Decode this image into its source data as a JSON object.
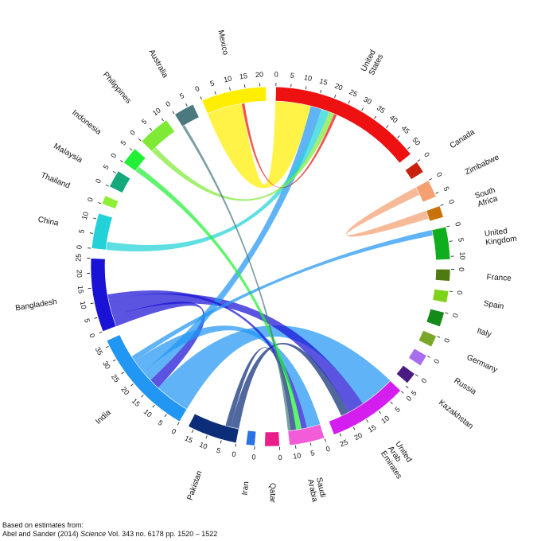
{
  "source": {
    "line1": "Based on estimates from:",
    "authors": "Abel and Sander (2014)",
    "journal": "Science",
    "citation": "Vol. 343 no. 6178 pp. 1520 – 1522"
  },
  "regions": [
    {
      "name": "United States",
      "lines": [
        "United",
        "States"
      ],
      "color": "#ee1111",
      "total": 52,
      "ticks": [
        0,
        5,
        10,
        15,
        20,
        25,
        30,
        35,
        40,
        45,
        50
      ]
    },
    {
      "name": "Canada",
      "lines": [
        "Canada"
      ],
      "color": "#c8220e",
      "total": 4,
      "ticks": [
        0
      ]
    },
    {
      "name": "Zimbabwe",
      "lines": [
        "Zimbabwe"
      ],
      "color": "#f4a070",
      "total": 6,
      "ticks": [
        0,
        5
      ]
    },
    {
      "name": "South Africa",
      "lines": [
        "South",
        "Africa"
      ],
      "color": "#c8720c",
      "total": 4,
      "ticks": [
        0
      ]
    },
    {
      "name": "United Kingdom",
      "lines": [
        "United",
        "Kingdom"
      ],
      "color": "#0fae1e",
      "total": 11,
      "ticks": [
        0,
        5,
        10
      ]
    },
    {
      "name": "France",
      "lines": [
        "France"
      ],
      "color": "#4f7a12",
      "total": 4,
      "ticks": [
        0
      ]
    },
    {
      "name": "Spain",
      "lines": [
        "Spain"
      ],
      "color": "#7ed21a",
      "total": 4,
      "ticks": [
        0
      ]
    },
    {
      "name": "Italy",
      "lines": [
        "Italy"
      ],
      "color": "#148a18",
      "total": 5,
      "ticks": [
        0
      ]
    },
    {
      "name": "Germany",
      "lines": [
        "Germany"
      ],
      "color": "#7aa62a",
      "total": 4,
      "ticks": [
        0
      ]
    },
    {
      "name": "Russia",
      "lines": [
        "Russia"
      ],
      "color": "#a96ef0",
      "total": 4,
      "ticks": [
        0
      ]
    },
    {
      "name": "Kazakhstan",
      "lines": [
        "Kazakhstan"
      ],
      "color": "#4a1c82",
      "total": 4,
      "ticks": [
        0,
        5
      ]
    },
    {
      "name": "United Arab Emirates",
      "lines": [
        "United",
        "Arab",
        "Emirates"
      ],
      "color": "#d41ef0",
      "total": 27,
      "ticks": [
        0,
        5,
        10,
        15,
        20,
        25
      ]
    },
    {
      "name": "Saudi Arabia",
      "lines": [
        "Saudi",
        "Arabia"
      ],
      "color": "#f25cd8",
      "total": 12,
      "ticks": [
        0,
        5,
        10
      ]
    },
    {
      "name": "Qatar",
      "lines": [
        "Qatar"
      ],
      "color": "#ea1e8a",
      "total": 5,
      "ticks": [
        0
      ]
    },
    {
      "name": "Iran",
      "lines": [
        "Iran"
      ],
      "color": "#2a72e6",
      "total": 3,
      "ticks": [
        0
      ]
    },
    {
      "name": "Pakistan",
      "lines": [
        "Pakistan"
      ],
      "color": "#0c2e78",
      "total": 17,
      "ticks": [
        0,
        5,
        10,
        15
      ]
    },
    {
      "name": "India",
      "lines": [
        "India"
      ],
      "color": "#2196f2",
      "total": 37,
      "ticks": [
        0,
        5,
        10,
        15,
        20,
        25,
        30,
        35
      ]
    },
    {
      "name": "Bangladesh",
      "lines": [
        "Bangladesh"
      ],
      "color": "#1a12d4",
      "total": 25,
      "ticks": [
        0,
        5,
        10,
        15,
        20,
        25
      ]
    },
    {
      "name": "China",
      "lines": [
        "China"
      ],
      "color": "#22d2d8",
      "total": 12,
      "ticks": [
        0,
        5,
        10
      ]
    },
    {
      "name": "Thailand",
      "lines": [
        "Thailand"
      ],
      "color": "#8ef036",
      "total": 3,
      "ticks": [
        0
      ]
    },
    {
      "name": "Malaysia",
      "lines": [
        "Malaysia"
      ],
      "color": "#14a87a",
      "total": 6,
      "ticks": [
        0,
        5
      ]
    },
    {
      "name": "Indonesia",
      "lines": [
        "Indonesia"
      ],
      "color": "#22f036",
      "total": 6,
      "ticks": [
        0,
        5
      ]
    },
    {
      "name": "Philippines",
      "lines": [
        "Philippines"
      ],
      "color": "#7eea36",
      "total": 11,
      "ticks": [
        0,
        5,
        10
      ]
    },
    {
      "name": "Australia",
      "lines": [
        "Australia"
      ],
      "color": "#4a7a80",
      "total": 7,
      "ticks": [
        0,
        5
      ]
    },
    {
      "name": "Mexico",
      "lines": [
        "Mexico"
      ],
      "color": "#ffee00",
      "total": 22,
      "ticks": [
        0,
        5,
        10,
        15,
        20
      ]
    }
  ],
  "flows": [
    {
      "from": "India",
      "to": "United Arab Emirates",
      "value": 13
    },
    {
      "from": "Mexico",
      "to": "United States",
      "value": 13
    },
    {
      "from": "Bangladesh",
      "to": "India",
      "value": 4
    },
    {
      "from": "Bangladesh",
      "to": "United Arab Emirates",
      "value": 6
    },
    {
      "from": "India",
      "to": "United States",
      "value": 4
    },
    {
      "from": "India",
      "to": "Saudi Arabia",
      "value": 5
    },
    {
      "from": "Pakistan",
      "to": "United Arab Emirates",
      "value": 3
    },
    {
      "from": "China",
      "to": "United States",
      "value": 3
    },
    {
      "from": "Philippines",
      "to": "United States",
      "value": 2
    },
    {
      "from": "Zimbabwe",
      "to": "South Africa",
      "value": 3
    },
    {
      "from": "Bangladesh",
      "to": "Saudi Arabia",
      "value": 2
    },
    {
      "from": "Indonesia",
      "to": "Saudi Arabia",
      "value": 2
    },
    {
      "from": "India",
      "to": "United Kingdom",
      "value": 2
    },
    {
      "from": "Pakistan",
      "to": "Saudi Arabia",
      "value": 2
    },
    {
      "from": "Australia",
      "to": "Saudi Arabia",
      "value": 1
    },
    {
      "from": "United States",
      "to": "Mexico",
      "value": 1
    }
  ]
}
